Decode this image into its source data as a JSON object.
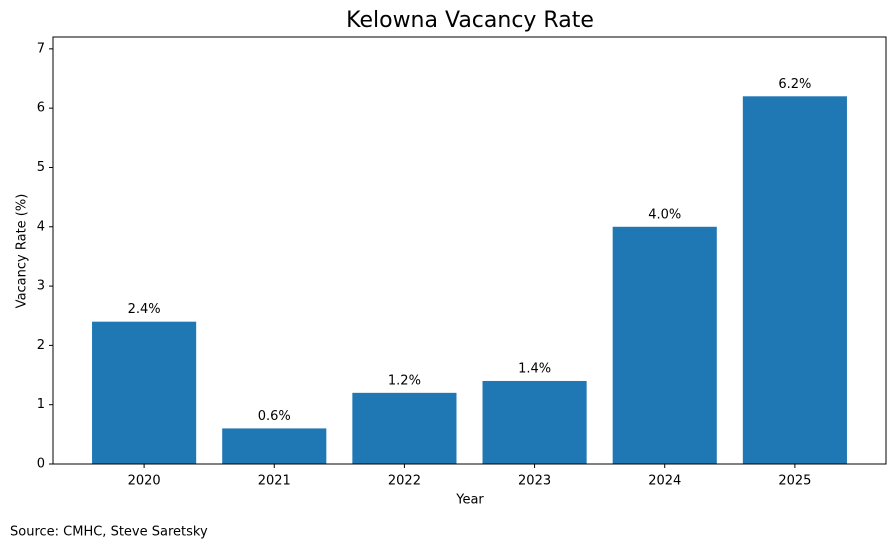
{
  "chart_data": {
    "type": "bar",
    "title": "Kelowna Vacancy Rate",
    "x_label": "Year",
    "y_label": "Vacancy Rate (%)",
    "categories": [
      "2020",
      "2021",
      "2022",
      "2023",
      "2024",
      "2025"
    ],
    "values": [
      2.4,
      0.6,
      1.2,
      1.4,
      4.0,
      6.2
    ],
    "value_labels": [
      "2.4%",
      "0.6%",
      "1.2%",
      "1.4%",
      "4.0%",
      "6.2%"
    ],
    "color": "#1f77b4",
    "ylim": [
      0,
      7.2
    ],
    "yticks": [
      0,
      1,
      2,
      3,
      4,
      5,
      6,
      7
    ],
    "grid": false,
    "source": "Source: CMHC, Steve Saretsky"
  }
}
